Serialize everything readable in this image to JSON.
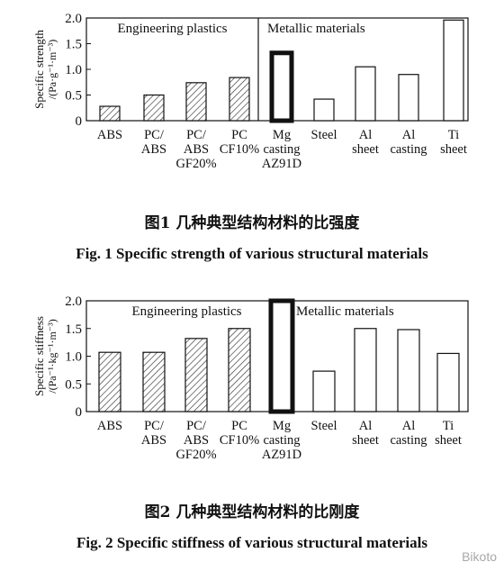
{
  "chart_data": [
    {
      "type": "bar",
      "ylabel_line1": "Specific strength",
      "ylabel_line2": "/(Pa·g⁻¹·m⁻³)",
      "ylim": [
        0,
        2.0
      ],
      "yticks": [
        "0",
        "0.5",
        "1.0",
        "1.5",
        "2.0"
      ],
      "group_labels": [
        "Engineering plastics",
        "Metallic materials"
      ],
      "categories": [
        [
          "ABS"
        ],
        [
          "PC/",
          "ABS"
        ],
        [
          "PC/",
          "ABS",
          "GF20%"
        ],
        [
          "PC",
          "CF10%"
        ],
        [
          "Mg",
          "casting",
          "AZ91D"
        ],
        [
          "Steel"
        ],
        [
          "Al",
          "sheet"
        ],
        [
          "Al",
          "casting"
        ],
        [
          "Ti",
          "sheet"
        ]
      ],
      "values": [
        0.28,
        0.5,
        0.74,
        0.84,
        1.32,
        0.42,
        1.05,
        0.9,
        1.96
      ],
      "fill": [
        "hatch",
        "hatch",
        "hatch",
        "hatch",
        "black",
        "white",
        "white",
        "white",
        "white"
      ],
      "caption_cn": "图1   几种典型结构材料的比强度",
      "caption_en": "Fig. 1    Specific strength of various structural materials"
    },
    {
      "type": "bar",
      "ylabel_line1": "Specific stiffness",
      "ylabel_line2": "/(Pa⁻¹·kg⁻¹·m⁻³)",
      "ylim": [
        0,
        2.0
      ],
      "yticks": [
        "0",
        "0.5",
        "1.0",
        "1.5",
        "2.0"
      ],
      "group_labels": [
        "Engineering plastics",
        "Metallic materials"
      ],
      "categories": [
        [
          "ABS"
        ],
        [
          "PC/",
          "ABS"
        ],
        [
          "PC/",
          "ABS",
          "GF20%"
        ],
        [
          "PC",
          "CF10%"
        ],
        [
          "Mg",
          "casting",
          "AZ91D"
        ],
        [
          "Steel"
        ],
        [
          "Al",
          "sheet"
        ],
        [
          "Al",
          "casting"
        ],
        [
          "Ti",
          "sheet"
        ]
      ],
      "values": [
        1.07,
        1.07,
        1.32,
        1.5,
        2.0,
        0.73,
        1.5,
        1.48,
        1.05
      ],
      "fill": [
        "hatch",
        "hatch",
        "hatch",
        "hatch",
        "black",
        "white",
        "white",
        "white",
        "white"
      ],
      "caption_cn": "图2   几种典型结构材料的比刚度",
      "caption_en": "Fig. 2    Specific stiffness of various structural materials"
    }
  ],
  "colors": {
    "ink": "#111111",
    "hatch": "#333333",
    "watermark": "#8a8a8a"
  },
  "watermark": "Bikoto"
}
